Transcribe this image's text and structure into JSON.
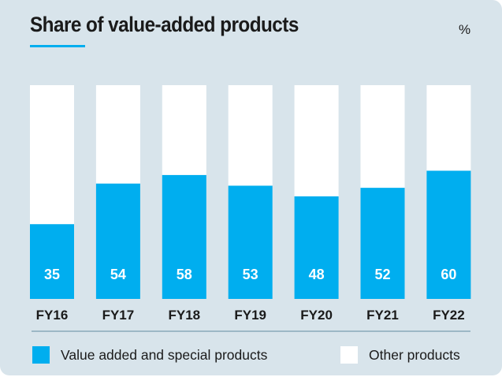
{
  "chart_data": {
    "type": "bar",
    "stacked": true,
    "title": "Share of value-added products",
    "unit_label": "%",
    "categories": [
      "FY16",
      "FY17",
      "FY18",
      "FY19",
      "FY20",
      "FY21",
      "FY22"
    ],
    "series": [
      {
        "name": "Value added and special products",
        "color": "#00aeef",
        "values": [
          35,
          54,
          58,
          53,
          48,
          52,
          60
        ]
      },
      {
        "name": "Other products",
        "color": "#ffffff",
        "values": [
          65,
          46,
          42,
          47,
          52,
          48,
          40
        ]
      }
    ],
    "ylim": [
      0,
      100
    ],
    "xlabel": "",
    "ylabel": "",
    "grid": false,
    "legend_position": "bottom",
    "data_labels_series": "Value added and special products"
  },
  "colors": {
    "accent": "#00aeef",
    "background": "#d8e4eb",
    "other": "#ffffff",
    "text": "#1a1a1a"
  }
}
